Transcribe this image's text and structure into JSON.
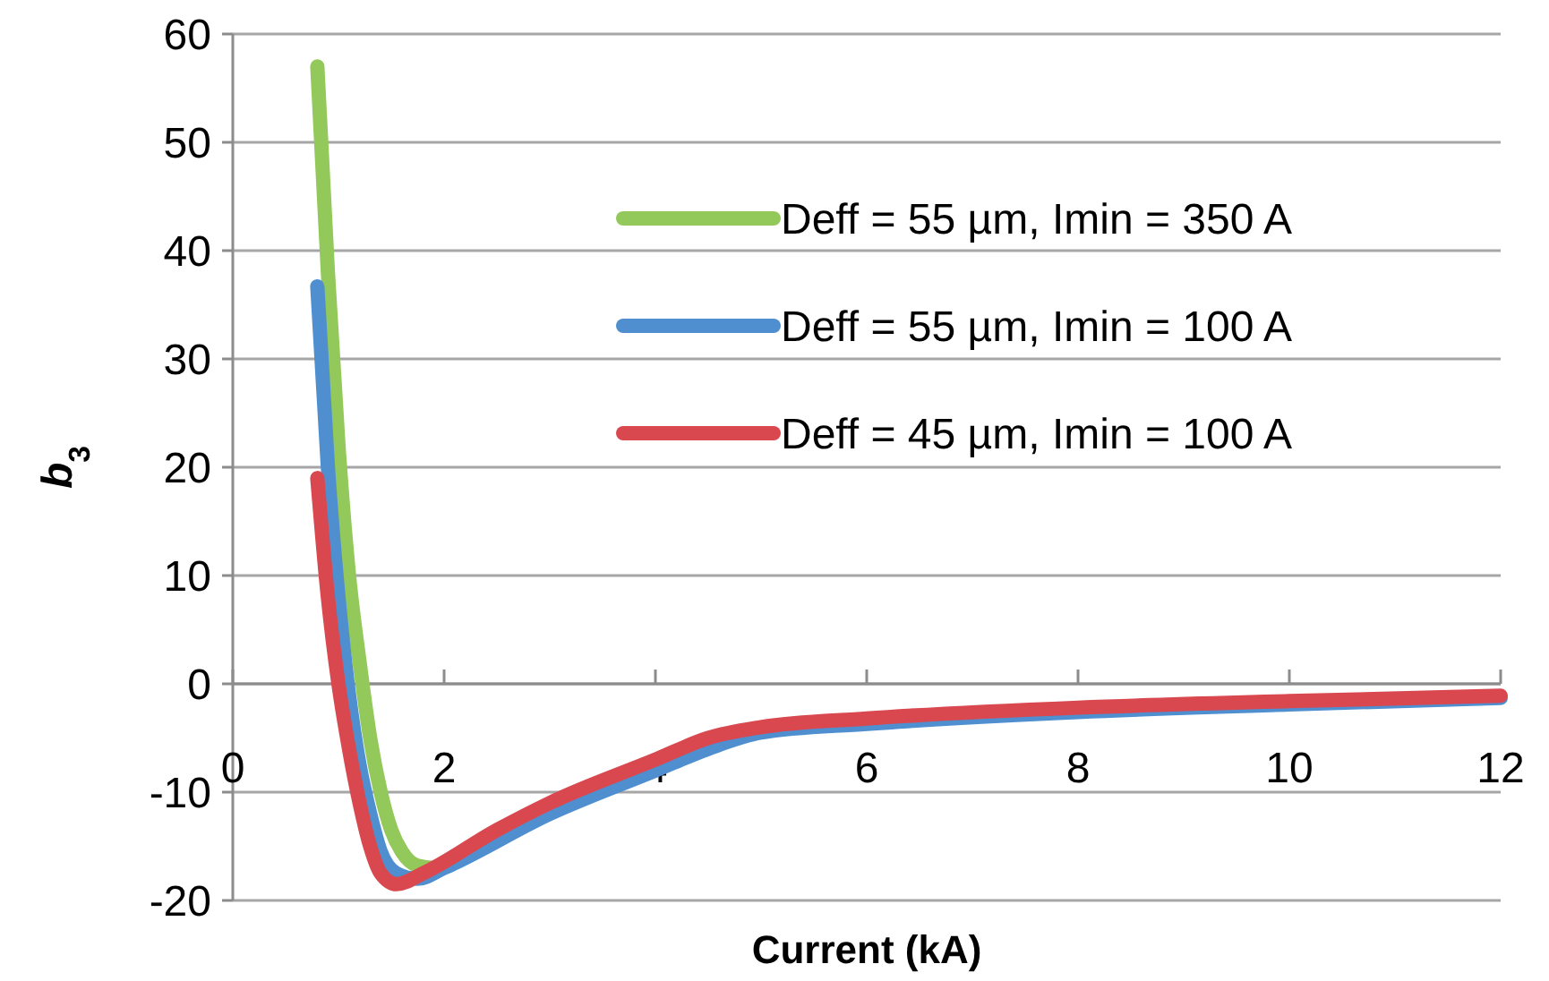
{
  "chart_data": {
    "type": "line",
    "xlabel": "Current (kA)",
    "ylabel": "b$_{3}$",
    "xlim": [
      0,
      12
    ],
    "xticks": [
      0,
      2,
      4,
      6,
      8,
      10,
      12
    ],
    "ylim": [
      -20,
      60
    ],
    "yticks": [
      -20,
      -10,
      0,
      10,
      20,
      30,
      40,
      50,
      60
    ],
    "grid": "y",
    "legend": "top right",
    "marker": "none",
    "line_style": "solid",
    "series": [
      {
        "name": "Deff = 55 µm, Imin = 350 A",
        "color": "#92c95a",
        "x": [
          0.8,
          0.9,
          1.0,
          1.1,
          1.2,
          1.3,
          1.4,
          1.5,
          1.6,
          1.75,
          1.9,
          2.0
        ],
        "values": [
          57,
          38,
          22,
          10,
          2,
          -5,
          -10,
          -13.5,
          -15.5,
          -16.8,
          -17,
          -16.8
        ]
      },
      {
        "name": "Deff = 55 µm, Imin = 100 A",
        "color": "#4f8fd0",
        "x": [
          0.8,
          0.9,
          1.0,
          1.1,
          1.2,
          1.3,
          1.4,
          1.55,
          1.75,
          2.0,
          3.0,
          4.0,
          4.5,
          5.0,
          6.0,
          8.0,
          10.0,
          12.0
        ],
        "values": [
          36.7,
          20,
          8,
          -1,
          -7.5,
          -12,
          -15.5,
          -17.5,
          -18,
          -17,
          -12,
          -8,
          -6,
          -4.5,
          -3.7,
          -2.6,
          -1.9,
          -1.3
        ]
      },
      {
        "name": "Deff = 45 µm, Imin = 100 A",
        "color": "#d9484f",
        "x": [
          0.8,
          0.9,
          1.0,
          1.1,
          1.2,
          1.3,
          1.4,
          1.55,
          1.8,
          2.5,
          3.0,
          4.0,
          4.5,
          5.0,
          6.0,
          8.0,
          10.0,
          12.0
        ],
        "values": [
          19,
          8,
          0,
          -6,
          -11,
          -15,
          -17.5,
          -18.5,
          -17.5,
          -13.5,
          -11,
          -7,
          -5,
          -4,
          -3.2,
          -2.2,
          -1.6,
          -1.1
        ]
      }
    ]
  }
}
